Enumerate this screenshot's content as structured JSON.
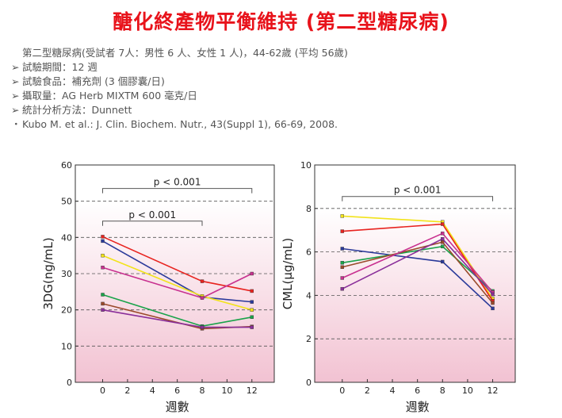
{
  "title": "醣化終產物平衡維持 (第二型糖尿病)",
  "info": {
    "lines": [
      {
        "bullet": "",
        "text": "第二型糖尿病(受試者 7人：男性 6 人、女性 1 人)，44-62歲 (平均 56歲)"
      },
      {
        "bullet": "➢",
        "text": "試驗期間：12 週"
      },
      {
        "bullet": "➢",
        "text": "試驗食品：補充劑 (3 個膠囊/日)"
      },
      {
        "bullet": "➢",
        "text": "攝取量：AG Herb MIXTM 600 毫克/日"
      },
      {
        "bullet": "➢",
        "text": "統計分析方法：Dunnett"
      },
      {
        "bullet": "・",
        "text": "Kubo M. et al.: J. Clin. Biochem. Nutr., 43(Suppl 1), 66-69, 2008."
      }
    ]
  },
  "chart_data": [
    {
      "type": "line",
      "xlabel": "週數",
      "ylabel": "3DG(ng/mL)",
      "x_ticks": [
        0,
        2,
        4,
        6,
        8,
        10,
        12
      ],
      "y_ticks": [
        0,
        10,
        20,
        30,
        40,
        50,
        60
      ],
      "xlim": [
        -2.2,
        13.8
      ],
      "ylim": [
        0,
        60
      ],
      "grid": "dashed horizontal",
      "x": [
        0,
        8,
        12
      ],
      "annotations": [
        {
          "text": "p < 0.001",
          "from": 0,
          "to": 12,
          "y": 53.5
        },
        {
          "text": "p < 0.001",
          "from": 0,
          "to": 8,
          "y": 44.5
        }
      ],
      "series": [
        {
          "color": "#e8231f",
          "values": [
            40.2,
            27.9,
            25.2
          ]
        },
        {
          "color": "#2b3a9a",
          "values": [
            39.0,
            23.5,
            22.2
          ]
        },
        {
          "color": "#f2e31a",
          "values": [
            35.0,
            23.8,
            20.0
          ]
        },
        {
          "color": "#c8308f",
          "values": [
            31.7,
            23.3,
            30.0
          ]
        },
        {
          "color": "#1aa34a",
          "values": [
            24.2,
            15.5,
            18.0
          ]
        },
        {
          "color": "#9a4a2a",
          "values": [
            21.7,
            14.8,
            15.4
          ]
        },
        {
          "color": "#8a2f9a",
          "values": [
            20.0,
            15.2,
            15.2
          ]
        }
      ]
    },
    {
      "type": "line",
      "xlabel": "週數",
      "ylabel": "CML(μg/mL)",
      "x_ticks": [
        0,
        2,
        4,
        6,
        8,
        10,
        12
      ],
      "y_ticks": [
        0,
        2,
        4,
        6,
        8,
        10
      ],
      "xlim": [
        -2.2,
        13.8
      ],
      "ylim": [
        0,
        10
      ],
      "grid": "dashed horizontal",
      "x": [
        0,
        8,
        12
      ],
      "annotations": [
        {
          "text": "p < 0.001",
          "from": 0,
          "to": 12,
          "y": 8.55
        }
      ],
      "series": [
        {
          "color": "#f2e31a",
          "values": [
            7.65,
            7.38,
            3.85
          ]
        },
        {
          "color": "#e8231f",
          "values": [
            6.95,
            7.28,
            3.75
          ]
        },
        {
          "color": "#2b3a9a",
          "values": [
            6.15,
            5.55,
            3.4
          ]
        },
        {
          "color": "#1aa34a",
          "values": [
            5.5,
            6.25,
            4.2
          ]
        },
        {
          "color": "#9a4a2a",
          "values": [
            5.3,
            6.45,
            3.65
          ]
        },
        {
          "color": "#c8308f",
          "values": [
            4.8,
            6.85,
            4.15
          ]
        },
        {
          "color": "#8a2f9a",
          "values": [
            4.3,
            6.6,
            4.05
          ]
        }
      ]
    }
  ]
}
